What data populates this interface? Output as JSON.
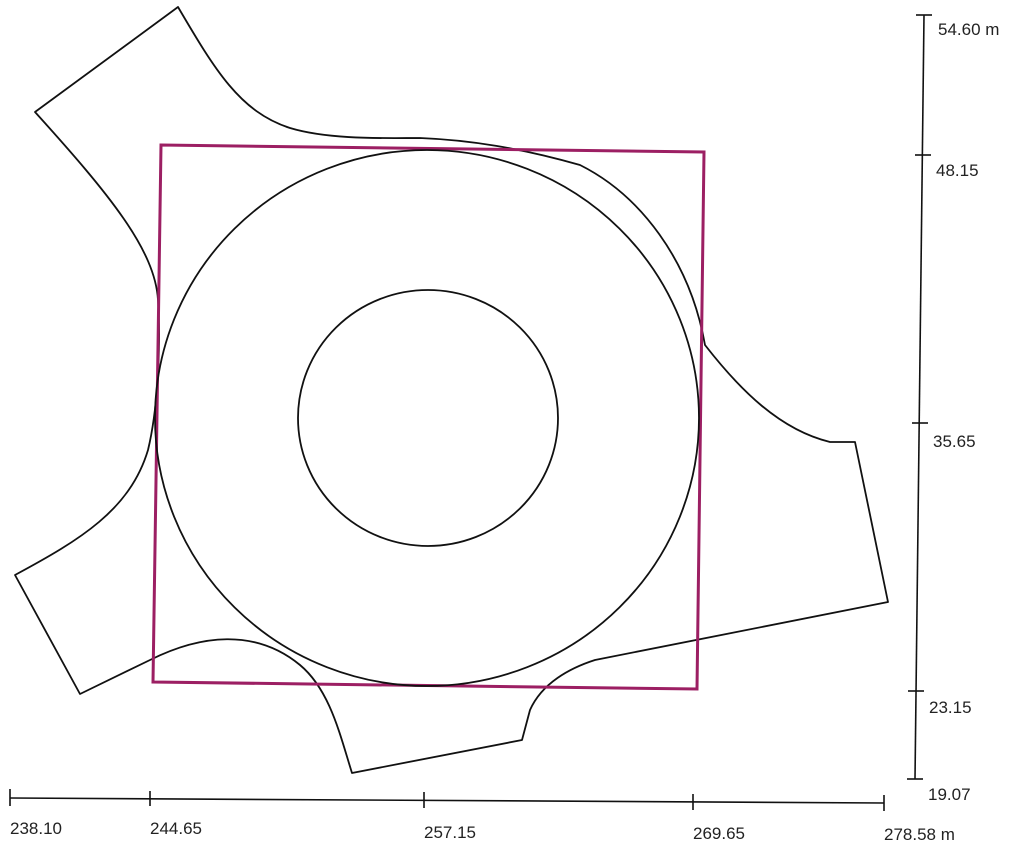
{
  "diagram": {
    "colors": {
      "outline": "#111111",
      "bounding_box": "#9c1f63"
    },
    "x_axis": {
      "unit": "m",
      "ticks": [
        {
          "value": 238.1,
          "label": "238.10"
        },
        {
          "value": 244.65,
          "label": "244.65"
        },
        {
          "value": 257.15,
          "label": "257.15"
        },
        {
          "value": 269.65,
          "label": "269.65"
        },
        {
          "value": 278.58,
          "label": "278.58 m"
        }
      ]
    },
    "y_axis": {
      "unit": "m",
      "ticks": [
        {
          "value": 54.6,
          "label": "54.60 m"
        },
        {
          "value": 48.15,
          "label": "48.15"
        },
        {
          "value": 35.65,
          "label": "35.65"
        },
        {
          "value": 23.15,
          "label": "23.15"
        },
        {
          "value": 19.07,
          "label": "19.07"
        }
      ]
    }
  }
}
